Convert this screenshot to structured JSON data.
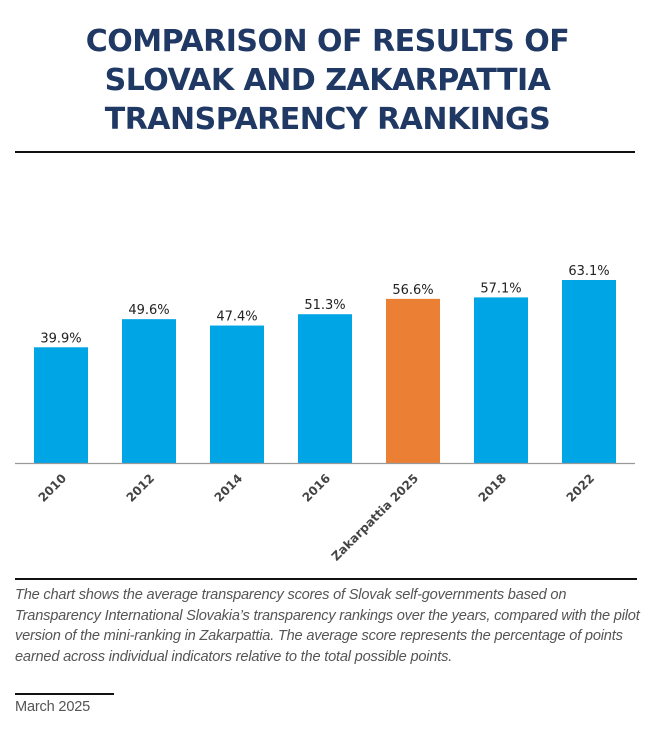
{
  "header": {
    "title_lines": [
      "COMPARISON OF RESULTS OF",
      "SLOVAK AND ZAKARPATTIA",
      "TRANSPARENCY RANKINGS"
    ]
  },
  "chart_data": {
    "type": "bar",
    "title": "Comparison of results of Slovak and Zakarpattia transparency rankings",
    "categories": [
      "2010",
      "2012",
      "2014",
      "2016",
      "Zakarpattia 2025",
      "2018",
      "2022"
    ],
    "values": [
      39.9,
      49.6,
      47.4,
      51.3,
      56.6,
      57.1,
      63.1
    ],
    "value_labels": [
      "39.9%",
      "49.6%",
      "47.4%",
      "51.3%",
      "56.6%",
      "57.1%",
      "63.1%"
    ],
    "highlight_index": 4,
    "colors": {
      "default": "#00a5e6",
      "highlight": "#eb8035",
      "axis": "#999999"
    },
    "xlabel": "",
    "ylabel": "",
    "ylim": [
      0,
      100
    ],
    "grid": false,
    "legend": "none"
  },
  "footer": {
    "note": "The chart shows the average transparency scores of Slovak self-governments based on Transparency International Slovakia’s transparency rankings over the years, compared with the pilot version of the mini-ranking in Zakarpattia. The average score represents the percentage of points earned across individual indicators relative to the total possible points.",
    "date": "March 2025"
  }
}
